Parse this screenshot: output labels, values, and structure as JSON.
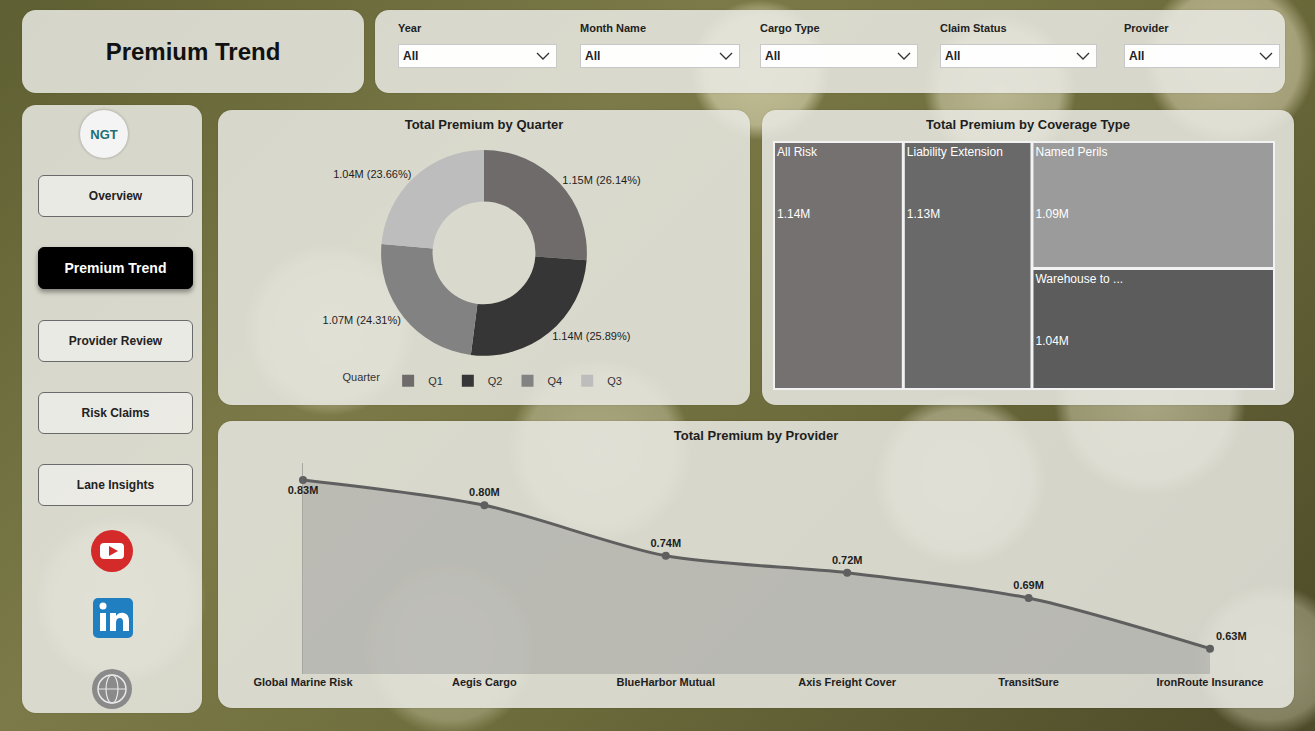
{
  "header": {
    "title": "Premium Trend"
  },
  "filters": [
    {
      "label": "Year",
      "value": "All"
    },
    {
      "label": "Month Name",
      "value": "All"
    },
    {
      "label": "Cargo Type",
      "value": "All"
    },
    {
      "label": "Claim Status",
      "value": "All"
    },
    {
      "label": "Provider",
      "value": "All"
    }
  ],
  "navigation": {
    "logo": "NGT",
    "items": [
      "Overview",
      "Premium Trend",
      "Provider Review",
      "Risk Claims",
      "Lane Insights"
    ],
    "active": "Premium Trend"
  },
  "chart_data": [
    {
      "type": "donut",
      "title": "Total Premium by Quarter",
      "categories": [
        "Q1",
        "Q2",
        "Q4",
        "Q3"
      ],
      "values": [
        1.15,
        1.14,
        1.07,
        1.04
      ],
      "value_labels": [
        "1.15M (26.14%)",
        "1.14M (25.89%)",
        "1.07M (24.31%)",
        "1.04M (23.66%)"
      ],
      "colors": [
        "#6f6b6b",
        "#363636",
        "#828282",
        "#bdbdbd"
      ],
      "legend": "bottom",
      "legend_title": "Quarter",
      "data_labels": true
    },
    {
      "type": "treemap",
      "title": "Total Premium by Coverage Type",
      "categories": [
        "All Risk",
        "Liability Extension",
        "Named Perils",
        "Warehouse to ..."
      ],
      "values": [
        1.14,
        1.13,
        1.09,
        1.04
      ],
      "value_labels": [
        "1.14M",
        "1.13M",
        "1.09M",
        "1.04M"
      ],
      "colors": [
        "#767171",
        "#696969",
        "#9b9b9b",
        "#5c5c5c"
      ],
      "data_labels": true
    },
    {
      "type": "area",
      "title": "Total Premium by Provider",
      "categories": [
        "Global Marine Risk",
        "Aegis Cargo",
        "BlueHarbor Mutual",
        "Axis Freight Cover",
        "TransitSure",
        "IronRoute Insurance"
      ],
      "values": [
        0.83,
        0.8,
        0.74,
        0.72,
        0.69,
        0.63
      ],
      "value_labels": [
        "0.83M",
        "0.80M",
        "0.74M",
        "0.72M",
        "0.69M",
        "0.63M"
      ],
      "color": "#5f5f5f",
      "ylim": [
        0.6,
        0.85
      ],
      "tick_labels": "x",
      "grid": false,
      "data_labels": true
    }
  ]
}
